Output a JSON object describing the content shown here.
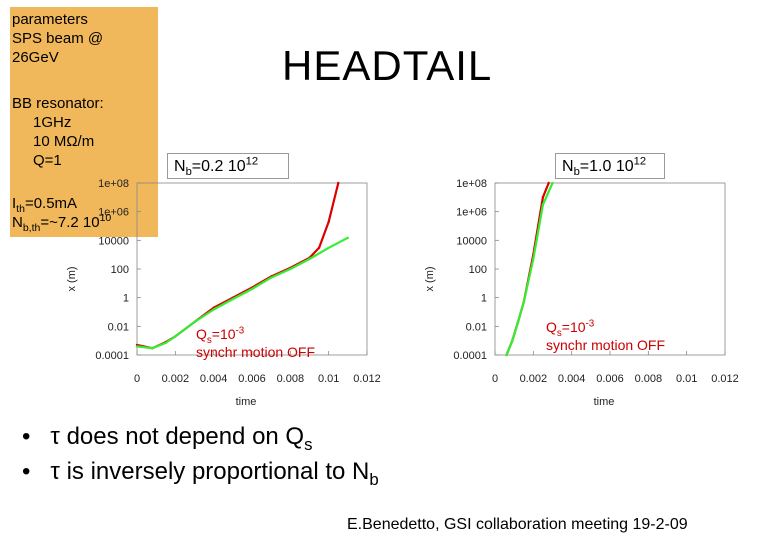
{
  "title": "HEADTAIL",
  "params": {
    "line1": "parameters",
    "line2": "SPS beam @",
    "line3": "26GeV",
    "bb_title": "BB resonator:",
    "bb_freq": "1GHz",
    "bb_imp": "10 MΩ/m",
    "bb_q": "Q=1",
    "ith_sym": "I",
    "ith_sub": "th",
    "ith_val": "=0.5mA",
    "nbth_sym": "N",
    "nbth_sub": "b,th",
    "nbth_val": "=~7.2 10",
    "nbth_exp": "10"
  },
  "labels": {
    "nb_left_sym": "N",
    "nb_left_sub": "b",
    "nb_left_val": "=0.2 10",
    "nb_left_exp": "12",
    "nb_right_sym": "N",
    "nb_right_sub": "b",
    "nb_right_val": "=1.0 10",
    "nb_right_exp": "12",
    "qs_sym": "Q",
    "qs_sub": "s",
    "qs_val": "=10",
    "qs_exp": "-3",
    "qs_line2": "synchr motion OFF"
  },
  "bullets": {
    "b1_pre": "τ does not depend on Q",
    "b1_sub": "s",
    "b2_pre": "τ is inversely proportional to N",
    "b2_sub": "b",
    "dot": "•"
  },
  "footer": "E.Benedetto, GSI collaboration meeting 19-2-09",
  "colors": {
    "series_red": "#dd0000",
    "series_green": "#33ee33",
    "param_box": "#f0b85a"
  },
  "chart_data": [
    {
      "type": "line",
      "title": "Nb=0.2 10^12",
      "xlabel": "time",
      "ylabel": "x (m)",
      "yscale": "log",
      "xlim": [
        0,
        0.012
      ],
      "ylim": [
        0.0001,
        100000000
      ],
      "x_ticks": [
        "0",
        "0.002",
        "0.004",
        "0.006",
        "0.008",
        "0.01",
        "0.012"
      ],
      "y_ticks": [
        "0.0001",
        "0.01",
        "1",
        "100",
        "10000",
        "1e+06",
        "1e+08"
      ],
      "series": [
        {
          "name": "red",
          "color": "#dd0000",
          "x": [
            0,
            0.0008,
            0.0015,
            0.002,
            0.003,
            0.004,
            0.005,
            0.006,
            0.007,
            0.008,
            0.009,
            0.0095,
            0.01,
            0.0105
          ],
          "y": [
            0.0005,
            0.0003,
            0.0008,
            0.002,
            0.02,
            0.2,
            1,
            5,
            30,
            120,
            600,
            3000,
            200000,
            100000000
          ]
        },
        {
          "name": "green",
          "color": "#33ee33",
          "x": [
            0,
            0.0008,
            0.0015,
            0.002,
            0.003,
            0.004,
            0.005,
            0.006,
            0.007,
            0.008,
            0.009,
            0.01,
            0.011
          ],
          "y": [
            0.0004,
            0.0003,
            0.0007,
            0.002,
            0.02,
            0.15,
            0.8,
            4,
            25,
            100,
            500,
            3000,
            15000
          ]
        }
      ]
    },
    {
      "type": "line",
      "title": "Nb=1.0 10^12",
      "xlabel": "time",
      "ylabel": "x (m)",
      "yscale": "log",
      "xlim": [
        0,
        0.012
      ],
      "ylim": [
        0.0001,
        100000000
      ],
      "x_ticks": [
        "0",
        "0.002",
        "0.004",
        "0.006",
        "0.008",
        "0.01",
        "0.012"
      ],
      "y_ticks": [
        "0.0001",
        "0.01",
        "1",
        "100",
        "10000",
        "1e+06",
        "1e+08"
      ],
      "series": [
        {
          "name": "red",
          "color": "#dd0000",
          "x": [
            0.0006,
            0.0009,
            0.0012,
            0.0015,
            0.002,
            0.0025,
            0.0028
          ],
          "y": [
            0.0001,
            0.001,
            0.02,
            0.5,
            1000,
            10000000,
            100000000
          ]
        },
        {
          "name": "green",
          "color": "#33ee33",
          "x": [
            0.0006,
            0.0009,
            0.0012,
            0.0015,
            0.002,
            0.0025,
            0.003
          ],
          "y": [
            0.0001,
            0.001,
            0.02,
            0.5,
            500,
            3000000,
            100000000
          ]
        }
      ]
    }
  ]
}
